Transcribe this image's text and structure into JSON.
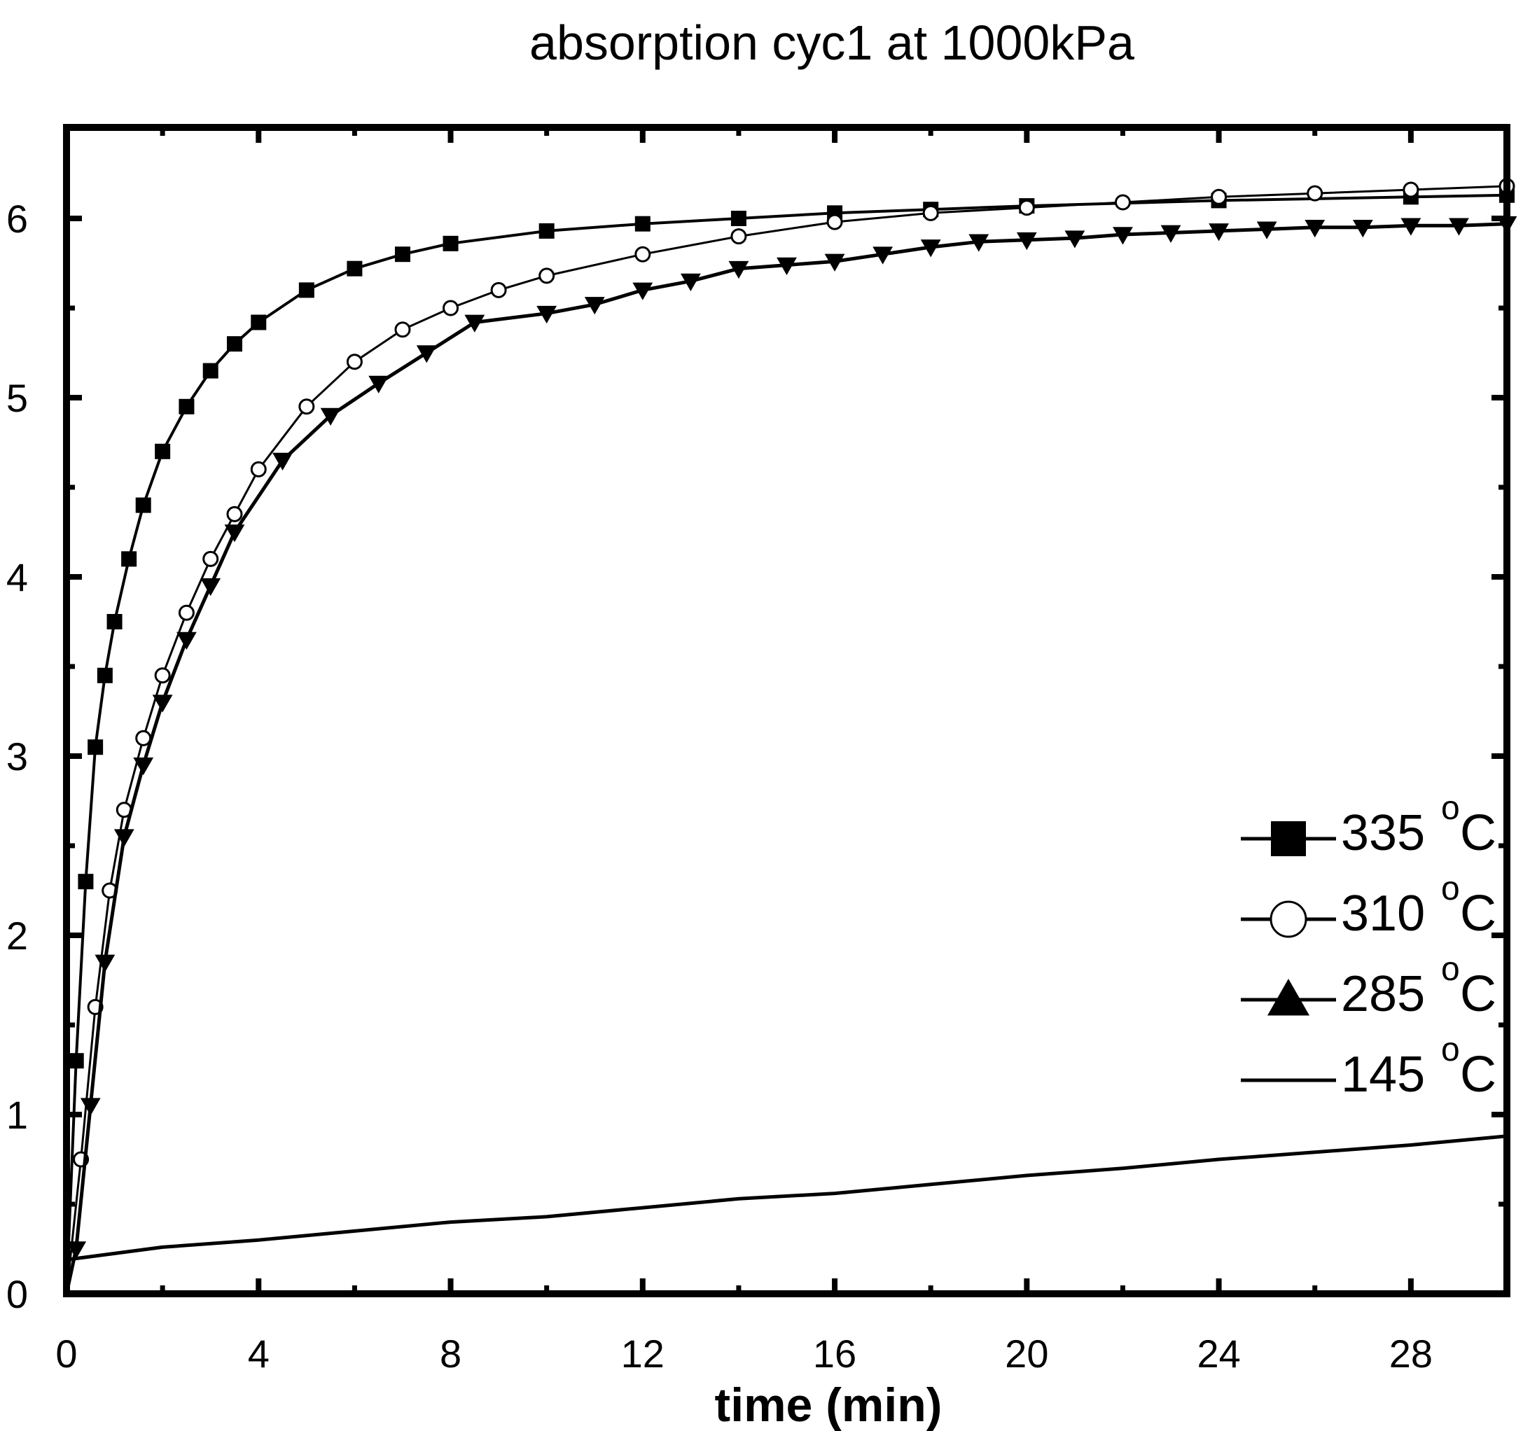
{
  "chart_data": {
    "type": "line",
    "title": "absorption cyc1 at 1000kPa",
    "xlabel": "time (min)",
    "ylabel": "",
    "xlim": [
      0,
      30
    ],
    "ylim": [
      0,
      6.5
    ],
    "xticks": [
      0,
      4,
      8,
      12,
      16,
      20,
      24,
      28
    ],
    "xtick_labels": [
      "0",
      "4",
      "8",
      "12",
      "16",
      "20",
      "24",
      "28"
    ],
    "yticks": [
      0,
      1,
      2,
      3,
      4,
      5,
      6
    ],
    "ytick_labels": [
      "0",
      "1",
      "2",
      "3",
      "4",
      "5",
      "6"
    ],
    "legend_position": "right",
    "series": [
      {
        "name": "335",
        "unit_sup": "o",
        "unit": "C",
        "marker": "filled-square",
        "x": [
          0,
          0.2,
          0.4,
          0.6,
          0.8,
          1,
          1.3,
          1.6,
          2,
          2.5,
          3,
          3.5,
          4,
          5,
          6,
          7,
          8,
          10,
          12,
          14,
          16,
          18,
          20,
          24,
          28,
          30
        ],
        "values": [
          0,
          1.3,
          2.3,
          3.05,
          3.45,
          3.75,
          4.1,
          4.4,
          4.7,
          4.95,
          5.15,
          5.3,
          5.42,
          5.6,
          5.72,
          5.8,
          5.86,
          5.93,
          5.97,
          6.0,
          6.03,
          6.05,
          6.07,
          6.1,
          6.12,
          6.13
        ]
      },
      {
        "name": "310",
        "unit_sup": "o",
        "unit": "C",
        "marker": "open-circle",
        "x": [
          0,
          0.3,
          0.6,
          0.9,
          1.2,
          1.6,
          2,
          2.5,
          3,
          3.5,
          4,
          5,
          6,
          7,
          8,
          9,
          10,
          12,
          14,
          16,
          18,
          20,
          22,
          24,
          26,
          28,
          30
        ],
        "values": [
          0,
          0.75,
          1.6,
          2.25,
          2.7,
          3.1,
          3.45,
          3.8,
          4.1,
          4.35,
          4.6,
          4.95,
          5.2,
          5.38,
          5.5,
          5.6,
          5.68,
          5.8,
          5.9,
          5.98,
          6.03,
          6.06,
          6.09,
          6.12,
          6.14,
          6.16,
          6.18
        ]
      },
      {
        "name": "285",
        "unit_sup": "o",
        "unit": "C",
        "marker": "filled-triangle",
        "x": [
          0,
          0.2,
          0.5,
          0.8,
          1.2,
          1.6,
          2,
          2.5,
          3,
          3.5,
          4.5,
          5.5,
          6.5,
          7.5,
          8.5,
          10,
          11,
          12,
          13,
          14,
          15,
          16,
          17,
          18,
          19,
          20,
          21,
          22,
          23,
          24,
          25,
          26,
          27,
          28,
          29,
          30
        ],
        "values": [
          0,
          0.25,
          1.05,
          1.85,
          2.55,
          2.95,
          3.3,
          3.65,
          3.95,
          4.25,
          4.65,
          4.9,
          5.08,
          5.25,
          5.42,
          5.47,
          5.52,
          5.6,
          5.65,
          5.72,
          5.74,
          5.76,
          5.8,
          5.84,
          5.87,
          5.88,
          5.89,
          5.91,
          5.92,
          5.93,
          5.94,
          5.95,
          5.95,
          5.96,
          5.96,
          5.97
        ]
      },
      {
        "name": "145",
        "unit_sup": "o",
        "unit": "C",
        "marker": "none",
        "x": [
          0,
          2,
          4,
          6,
          8,
          10,
          12,
          14,
          16,
          18,
          20,
          22,
          24,
          26,
          28,
          30
        ],
        "values": [
          0.19,
          0.26,
          0.3,
          0.35,
          0.4,
          0.43,
          0.48,
          0.53,
          0.56,
          0.61,
          0.66,
          0.7,
          0.75,
          0.79,
          0.83,
          0.88
        ]
      }
    ]
  }
}
